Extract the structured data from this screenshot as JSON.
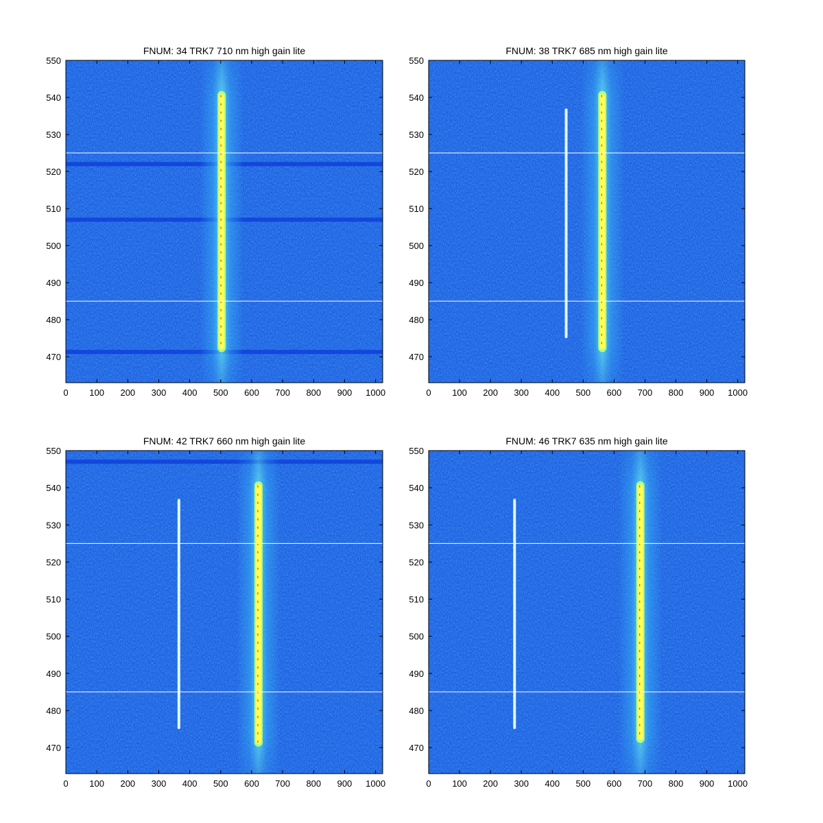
{
  "figure": {
    "background": "#ffffff"
  },
  "colors": {
    "background_field": "#1f5fe0",
    "noise_light": "#2e86f2",
    "noise_dark": "#0c3ad8",
    "halo": "#38b6f5",
    "halo_inner": "#5fe0f0",
    "line_core": "#ffff55",
    "line_edge": "#aaff88",
    "line_hot": "#e81a0a",
    "faint_line": "#e8ffff",
    "guide_line": "#ffffff",
    "axis": "#000000"
  },
  "chart_data": [
    {
      "type": "heatmap",
      "title": "FNUM: 34 TRK7 710 nm high gain lite",
      "xlabel": "",
      "ylabel": "",
      "xlim": [
        0,
        1023
      ],
      "ylim": [
        463,
        550
      ],
      "xticks": [
        0,
        100,
        200,
        300,
        400,
        500,
        600,
        700,
        800,
        900,
        1000
      ],
      "yticks": [
        470,
        480,
        490,
        500,
        510,
        520,
        530,
        540,
        550
      ],
      "grid": false,
      "guide_lines_y": [
        485,
        525
      ],
      "bright_line": {
        "x": 503,
        "y_start": 472,
        "y_end": 541
      },
      "faint_line": null,
      "dark_bands_y": [
        471.3,
        507,
        522
      ]
    },
    {
      "type": "heatmap",
      "title": "FNUM: 38 TRK7 685 nm high gain lite",
      "xlabel": "",
      "ylabel": "",
      "xlim": [
        0,
        1023
      ],
      "ylim": [
        463,
        550
      ],
      "xticks": [
        0,
        100,
        200,
        300,
        400,
        500,
        600,
        700,
        800,
        900,
        1000
      ],
      "yticks": [
        470,
        480,
        490,
        500,
        510,
        520,
        530,
        540,
        550
      ],
      "grid": false,
      "guide_lines_y": [
        485,
        525
      ],
      "bright_line": {
        "x": 562,
        "y_start": 472,
        "y_end": 541
      },
      "faint_line": {
        "x": 445,
        "y_start": 475,
        "y_end": 537
      },
      "dark_bands_y": []
    },
    {
      "type": "heatmap",
      "title": "FNUM: 42 TRK7 660 nm high gain lite",
      "xlabel": "",
      "ylabel": "",
      "xlim": [
        0,
        1023
      ],
      "ylim": [
        463,
        550
      ],
      "xticks": [
        0,
        100,
        200,
        300,
        400,
        500,
        600,
        700,
        800,
        900,
        1000
      ],
      "yticks": [
        470,
        480,
        490,
        500,
        510,
        520,
        530,
        540,
        550
      ],
      "grid": false,
      "guide_lines_y": [
        485,
        525
      ],
      "bright_line": {
        "x": 622,
        "y_start": 471,
        "y_end": 541
      },
      "faint_line": {
        "x": 365,
        "y_start": 475,
        "y_end": 537
      },
      "dark_bands_y": [
        547
      ]
    },
    {
      "type": "heatmap",
      "title": "FNUM: 46 TRK7 635 nm high gain lite",
      "xlabel": "",
      "ylabel": "",
      "xlim": [
        0,
        1023
      ],
      "ylim": [
        463,
        550
      ],
      "xticks": [
        0,
        100,
        200,
        300,
        400,
        500,
        600,
        700,
        800,
        900,
        1000
      ],
      "yticks": [
        470,
        480,
        490,
        500,
        510,
        520,
        530,
        540,
        550
      ],
      "grid": false,
      "guide_lines_y": [
        485,
        525
      ],
      "bright_line": {
        "x": 685,
        "y_start": 472,
        "y_end": 541
      },
      "faint_line": {
        "x": 278,
        "y_start": 475,
        "y_end": 537
      },
      "dark_bands_y": []
    }
  ]
}
